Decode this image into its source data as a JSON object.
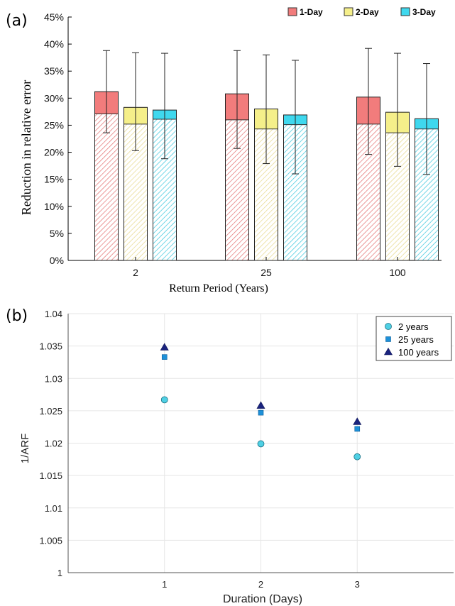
{
  "panel_a": {
    "label": "(a)",
    "colors": {
      "1-Day": "#f27c7c",
      "2-Day": "#f5ef8a",
      "3-Day": "#3fd8ee"
    },
    "chart_data": {
      "type": "bar",
      "title": "",
      "xlabel": "Return Period (Years)",
      "ylabel": "Reduction in relative error",
      "categories": [
        "2",
        "25",
        "100"
      ],
      "ylim": [
        0,
        45
      ],
      "yticks": [
        "0%",
        "5%",
        "10%",
        "15%",
        "20%",
        "25%",
        "30%",
        "35%",
        "40%",
        "45%"
      ],
      "legend_position": "top-right",
      "series": [
        {
          "name": "1-Day",
          "values": [
            31.2,
            30.8,
            30.2
          ],
          "hatched_lower": [
            27.1,
            26.0,
            25.2
          ],
          "error_low": [
            23.6,
            20.7,
            19.6
          ],
          "error_high": [
            38.8,
            38.8,
            39.2
          ]
        },
        {
          "name": "2-Day",
          "values": [
            28.3,
            28.0,
            27.4
          ],
          "hatched_lower": [
            25.2,
            24.3,
            23.6
          ],
          "error_low": [
            20.3,
            17.9,
            17.4
          ],
          "error_high": [
            38.4,
            38.0,
            38.3
          ]
        },
        {
          "name": "3-Day",
          "values": [
            27.8,
            26.9,
            26.2
          ],
          "hatched_lower": [
            26.1,
            25.1,
            24.3
          ],
          "error_low": [
            18.8,
            16.0,
            15.9
          ],
          "error_high": [
            38.3,
            37.0,
            36.4
          ]
        }
      ]
    }
  },
  "panel_b": {
    "label": "(b)",
    "chart_data": {
      "type": "scatter",
      "title": "",
      "xlabel": "Duration (Days)",
      "ylabel": "1/ARF",
      "x": [
        1,
        2,
        3
      ],
      "xlim": [
        0,
        4
      ],
      "ylim": [
        1,
        1.04
      ],
      "xticks": [
        "1",
        "2",
        "3"
      ],
      "yticks": [
        "1",
        "1.005",
        "1.01",
        "1.015",
        "1.02",
        "1.025",
        "1.03",
        "1.035",
        "1.04"
      ],
      "grid": true,
      "legend_position": "top-right",
      "series": [
        {
          "name": "2 years",
          "marker": "circle",
          "color": "#4fd0e4",
          "values": [
            1.0267,
            1.0199,
            1.0179
          ]
        },
        {
          "name": "25 years",
          "marker": "square",
          "color": "#1e90d8",
          "values": [
            1.0333,
            1.0247,
            1.0222
          ]
        },
        {
          "name": "100 years",
          "marker": "triangle",
          "color": "#1a237e",
          "values": [
            1.0348,
            1.0258,
            1.0233
          ]
        }
      ]
    }
  }
}
